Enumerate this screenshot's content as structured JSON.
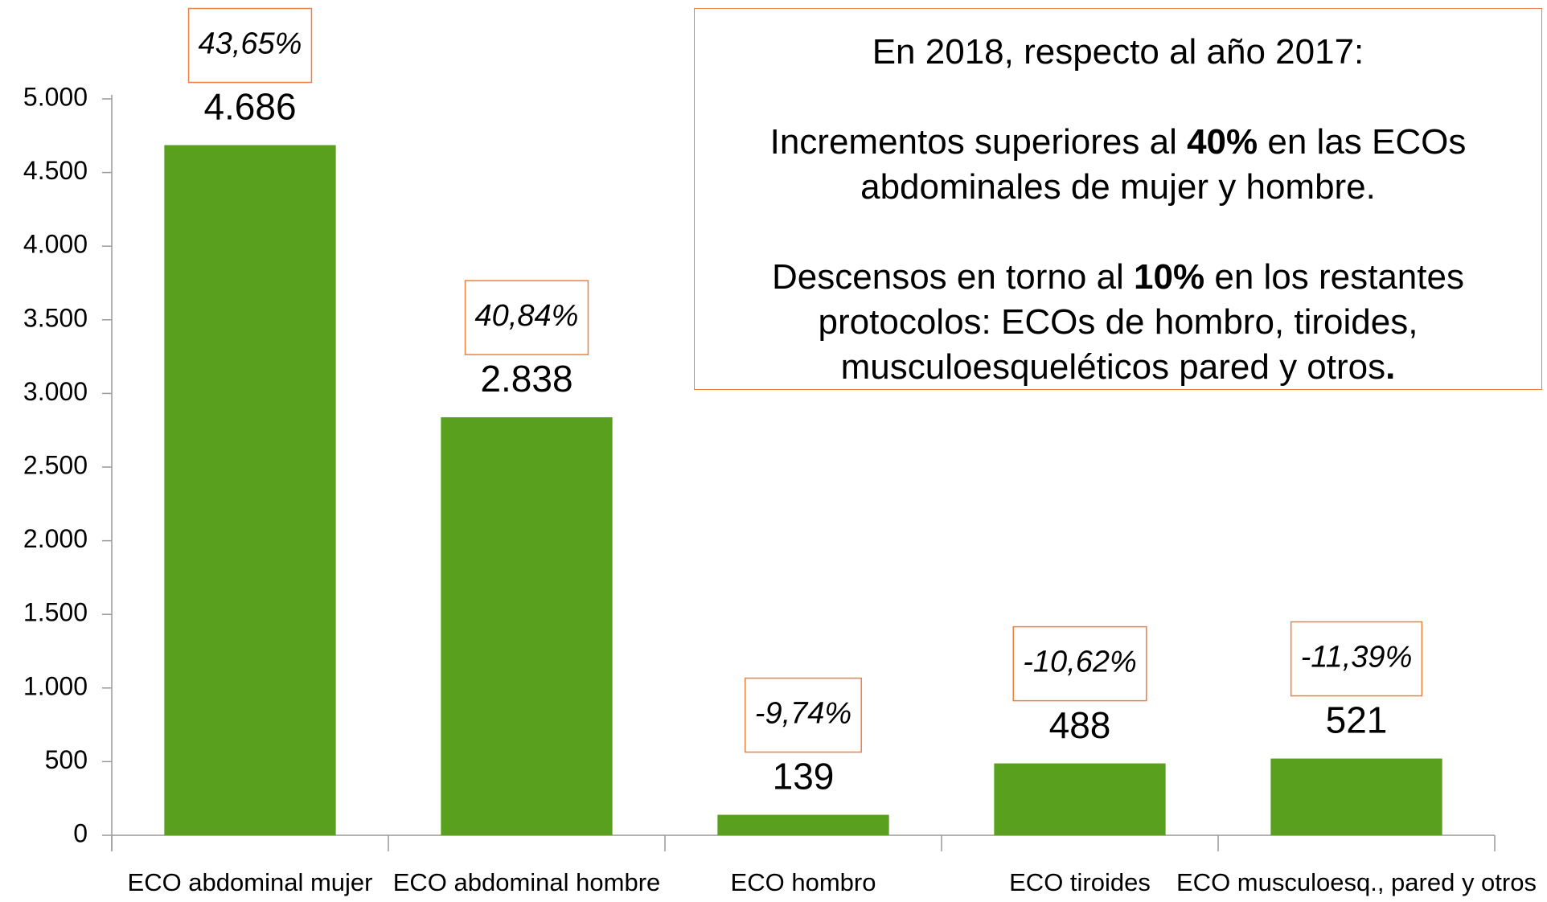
{
  "chart_data": {
    "type": "bar",
    "categories": [
      "ECO abdominal mujer",
      "ECO abdominal hombre",
      "ECO hombro",
      "ECO tiroides",
      "ECO musculoesq., pared y  otros"
    ],
    "values": [
      4686,
      2838,
      139,
      488,
      521
    ],
    "value_labels": [
      "4.686",
      "2.838",
      "139",
      "488",
      "521"
    ],
    "change_labels": [
      "43,65%",
      "40,84%",
      "-9,74%",
      "-10,62%",
      "-11,39%"
    ],
    "color": "#58a01d",
    "ylim": [
      0,
      5000
    ],
    "yticks": [
      0,
      500,
      {
        "value": 1000,
        "label": "1.000"
      },
      {
        "value": 1500,
        "label": "1.500"
      },
      {
        "value": 2000,
        "label": "2.000"
      },
      {
        "value": 2500,
        "label": "2.500"
      },
      {
        "value": 3000,
        "label": "3.000"
      },
      {
        "value": 3500,
        "label": "3.500"
      },
      {
        "value": 4000,
        "label": "4.000"
      },
      {
        "value": 4500,
        "label": "4.500"
      },
      {
        "value": 5000,
        "label": "5.000"
      }
    ],
    "note": {
      "title": "En 2018, respecto al año 2017:",
      "p1": [
        "Incrementos superiores al ",
        "40%",
        " en las ECOs abdominales de mujer y hombre."
      ],
      "p2": [
        "Descensos en torno al ",
        "10%",
        " en los restantes protocolos: ECOs de hombro, tiroides, musculoesqueléticos pared y otros",
        "."
      ]
    }
  }
}
